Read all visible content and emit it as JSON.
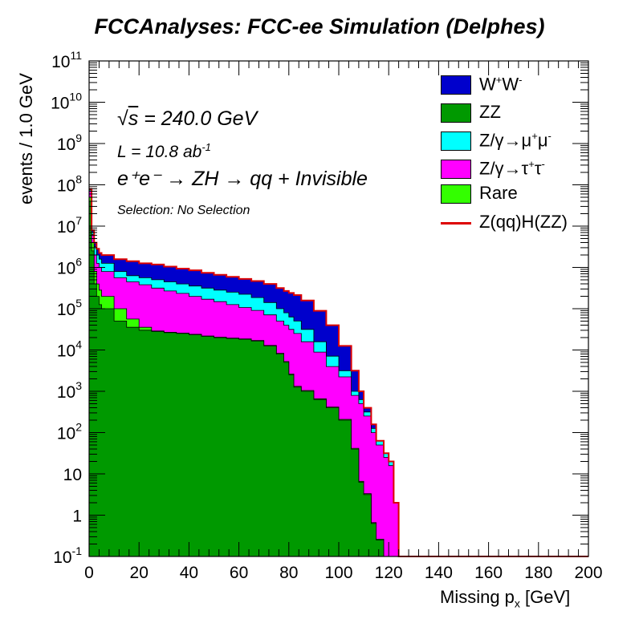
{
  "chart_data": {
    "type": "area",
    "title": "FCCAnalyses: FCC-ee Simulation (Delphes)",
    "xlabel": "Missing p",
    "xlabel_sub": "x",
    "xlabel_unit": " [GeV]",
    "ylabel": "events / 1.0 GeV",
    "y_scale": "log",
    "xlim": [
      0,
      200
    ],
    "ylim_exp": [
      -1,
      11
    ],
    "x_ticks": [
      0,
      20,
      40,
      60,
      80,
      100,
      120,
      140,
      160,
      180,
      200
    ],
    "y_ticks": [
      "10^-1",
      "1",
      "10",
      "10^2",
      "10^3",
      "10^4",
      "10^5",
      "10^6",
      "10^7",
      "10^8",
      "10^9",
      "10^10",
      "10^11"
    ],
    "annotations": {
      "sqrt_s": "= 240.0 GeV",
      "lumi_prefix": "L = 10.8 ab",
      "lumi_exp": "-1",
      "process": "e⁺e⁻ → ZH → qq + Invisible",
      "selection": "Selection: No Selection"
    },
    "legend_position": "top-right",
    "x": [
      0,
      1,
      2,
      3,
      4,
      5,
      10,
      15,
      20,
      25,
      30,
      35,
      40,
      45,
      50,
      55,
      60,
      65,
      70,
      75,
      78,
      80,
      82,
      85,
      90,
      95,
      100,
      105,
      108,
      110,
      113,
      115,
      118,
      120,
      122,
      124,
      125,
      130,
      140,
      160,
      180,
      200
    ],
    "series": [
      {
        "name": "W⁺W⁻",
        "color": "#0000cc",
        "totals_log10": [
          7.9,
          6.9,
          6.6,
          6.45,
          6.35,
          6.3,
          6.2,
          6.15,
          6.1,
          6.07,
          6.02,
          5.97,
          5.93,
          5.87,
          5.82,
          5.77,
          5.72,
          5.67,
          5.6,
          5.5,
          5.43,
          5.38,
          5.33,
          5.2,
          4.95,
          4.6,
          4.1,
          3.5,
          3.0,
          2.6,
          2.2,
          1.8,
          1.5,
          1.3,
          -1,
          -1,
          -1,
          -1,
          -1,
          -1,
          -1,
          -1
        ]
      },
      {
        "name": "ZZ",
        "color": "#009900",
        "totals_log10": [
          7.6,
          6.4,
          5.6,
          5.3,
          5.1,
          5.0,
          4.7,
          4.55,
          4.48,
          4.45,
          4.42,
          4.4,
          4.37,
          4.33,
          4.3,
          4.28,
          4.26,
          4.22,
          4.1,
          3.9,
          3.7,
          3.4,
          3.1,
          3.0,
          2.8,
          2.6,
          2.3,
          1.6,
          0.8,
          0.5,
          -0.2,
          -0.6,
          -1,
          -1,
          -1,
          -1,
          -1,
          -1,
          -1,
          -1,
          -1,
          -1
        ]
      },
      {
        "name": "Z/γ→μ⁺μ⁻",
        "color": "#00ffff",
        "totals_log10": [
          7.88,
          6.85,
          6.5,
          6.3,
          6.2,
          6.1,
          5.9,
          5.8,
          5.75,
          5.7,
          5.65,
          5.6,
          5.55,
          5.5,
          5.45,
          5.4,
          5.35,
          5.27,
          5.15,
          5.0,
          4.9,
          4.8,
          4.7,
          4.5,
          4.2,
          3.85,
          3.5,
          3.0,
          2.8,
          2.5,
          2.1,
          1.8,
          1.5,
          1.3,
          -1,
          -1,
          -1,
          -1,
          -1,
          -1,
          -1,
          -1
        ]
      },
      {
        "name": "Z/γ→τ⁺τ⁻",
        "color": "#ff00ff",
        "totals_log10": [
          7.85,
          6.8,
          6.3,
          6.1,
          6.0,
          5.9,
          5.75,
          5.65,
          5.58,
          5.5,
          5.43,
          5.37,
          5.3,
          5.23,
          5.17,
          5.1,
          5.03,
          4.96,
          4.85,
          4.7,
          4.6,
          4.5,
          4.4,
          4.2,
          3.95,
          3.6,
          3.35,
          2.9,
          2.7,
          2.4,
          2.0,
          1.7,
          1.4,
          1.2,
          0.3,
          -1,
          -1,
          -1,
          -1,
          -1,
          -1,
          -1
        ]
      },
      {
        "name": "Rare",
        "color": "#33ff00",
        "totals_log10": [
          7.7,
          6.6,
          5.9,
          5.6,
          5.45,
          5.3,
          5.0,
          4.75,
          4.55,
          4.46,
          4.43,
          4.41,
          4.38,
          4.34,
          4.31,
          4.29,
          4.27,
          4.23,
          4.11,
          3.92,
          3.72,
          3.42,
          3.12,
          3.02,
          2.82,
          2.62,
          2.32,
          1.62,
          0.82,
          0.52,
          -0.18,
          -0.58,
          -1,
          -1,
          -1,
          -1,
          -1,
          -1,
          -1,
          -1,
          -1,
          -1
        ]
      },
      {
        "name": "Z(qq)H(ZZ)",
        "color": "#dd0000",
        "style": "line",
        "totals_log10": [
          7.9,
          6.9,
          6.6,
          6.45,
          6.35,
          6.3,
          6.2,
          6.15,
          6.1,
          6.07,
          6.02,
          5.97,
          5.93,
          5.87,
          5.82,
          5.77,
          5.72,
          5.67,
          5.6,
          5.5,
          5.43,
          5.38,
          5.33,
          5.2,
          4.95,
          4.6,
          4.1,
          3.5,
          3.0,
          2.6,
          2.2,
          1.8,
          1.5,
          1.3,
          0.3,
          -1,
          -1,
          -1,
          -1,
          -1,
          -1,
          -1
        ]
      }
    ]
  },
  "legend": [
    {
      "label": "W",
      "sup1": "+",
      "label2": "W",
      "sup2": "-",
      "color": "#0000cc"
    },
    {
      "label": "ZZ",
      "color": "#009900"
    },
    {
      "label": "Z/γ→μ",
      "sup1": "+",
      "label2": "μ",
      "sup2": "-",
      "color": "#00ffff"
    },
    {
      "label": "Z/γ→τ",
      "sup1": "+",
      "label2": "τ",
      "sup2": "-",
      "color": "#ff00ff"
    },
    {
      "label": "Rare",
      "color": "#33ff00"
    },
    {
      "label": "Z(qq)H(ZZ)",
      "color": "#dd0000",
      "style": "line"
    }
  ]
}
